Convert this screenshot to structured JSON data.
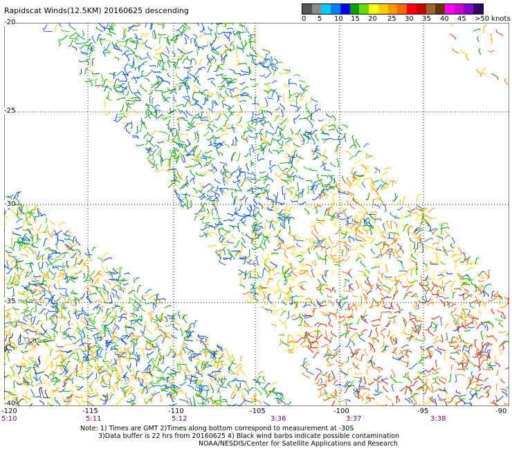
{
  "title": "Rapidscat Winds(12.5KM) 20160625 descending",
  "legend": {
    "colors": [
      "#555555",
      "#8c8c8c",
      "#00ccff",
      "#0080ff",
      "#0000ff",
      "#00a000",
      "#66dd00",
      "#ffff00",
      "#ffcc00",
      "#ff9900",
      "#ff6600",
      "#ff0000",
      "#cc0000",
      "#996633",
      "#663300",
      "#ff00ff",
      "#cc00cc",
      "#8800cc",
      "#330066"
    ],
    "labels": [
      "0",
      "5",
      "10",
      "15",
      "20",
      "25",
      "30",
      "35",
      "40",
      "45",
      ">50 knots"
    ]
  },
  "axes": {
    "y_labels": [
      "-20",
      "-25",
      "-30",
      "-35",
      "-40"
    ],
    "x_labels": [
      "-120",
      "-115",
      "-110",
      "-105",
      "-100",
      "-95",
      "-90"
    ],
    "times": [
      "5:10",
      "5:11",
      "5:12",
      "3:36",
      "3:37",
      "3:38"
    ]
  },
  "notes": {
    "line1": "Note: 1) Times are GMT 2)Times along bottom correspond to measurement at -30S",
    "line2": "3)Data buffer is 22 hrs from 20160625 4) Black wind barbs indicate possible contamination",
    "line3": "NOAA/NESDIS/Center for Satellite Applications and Research"
  }
}
